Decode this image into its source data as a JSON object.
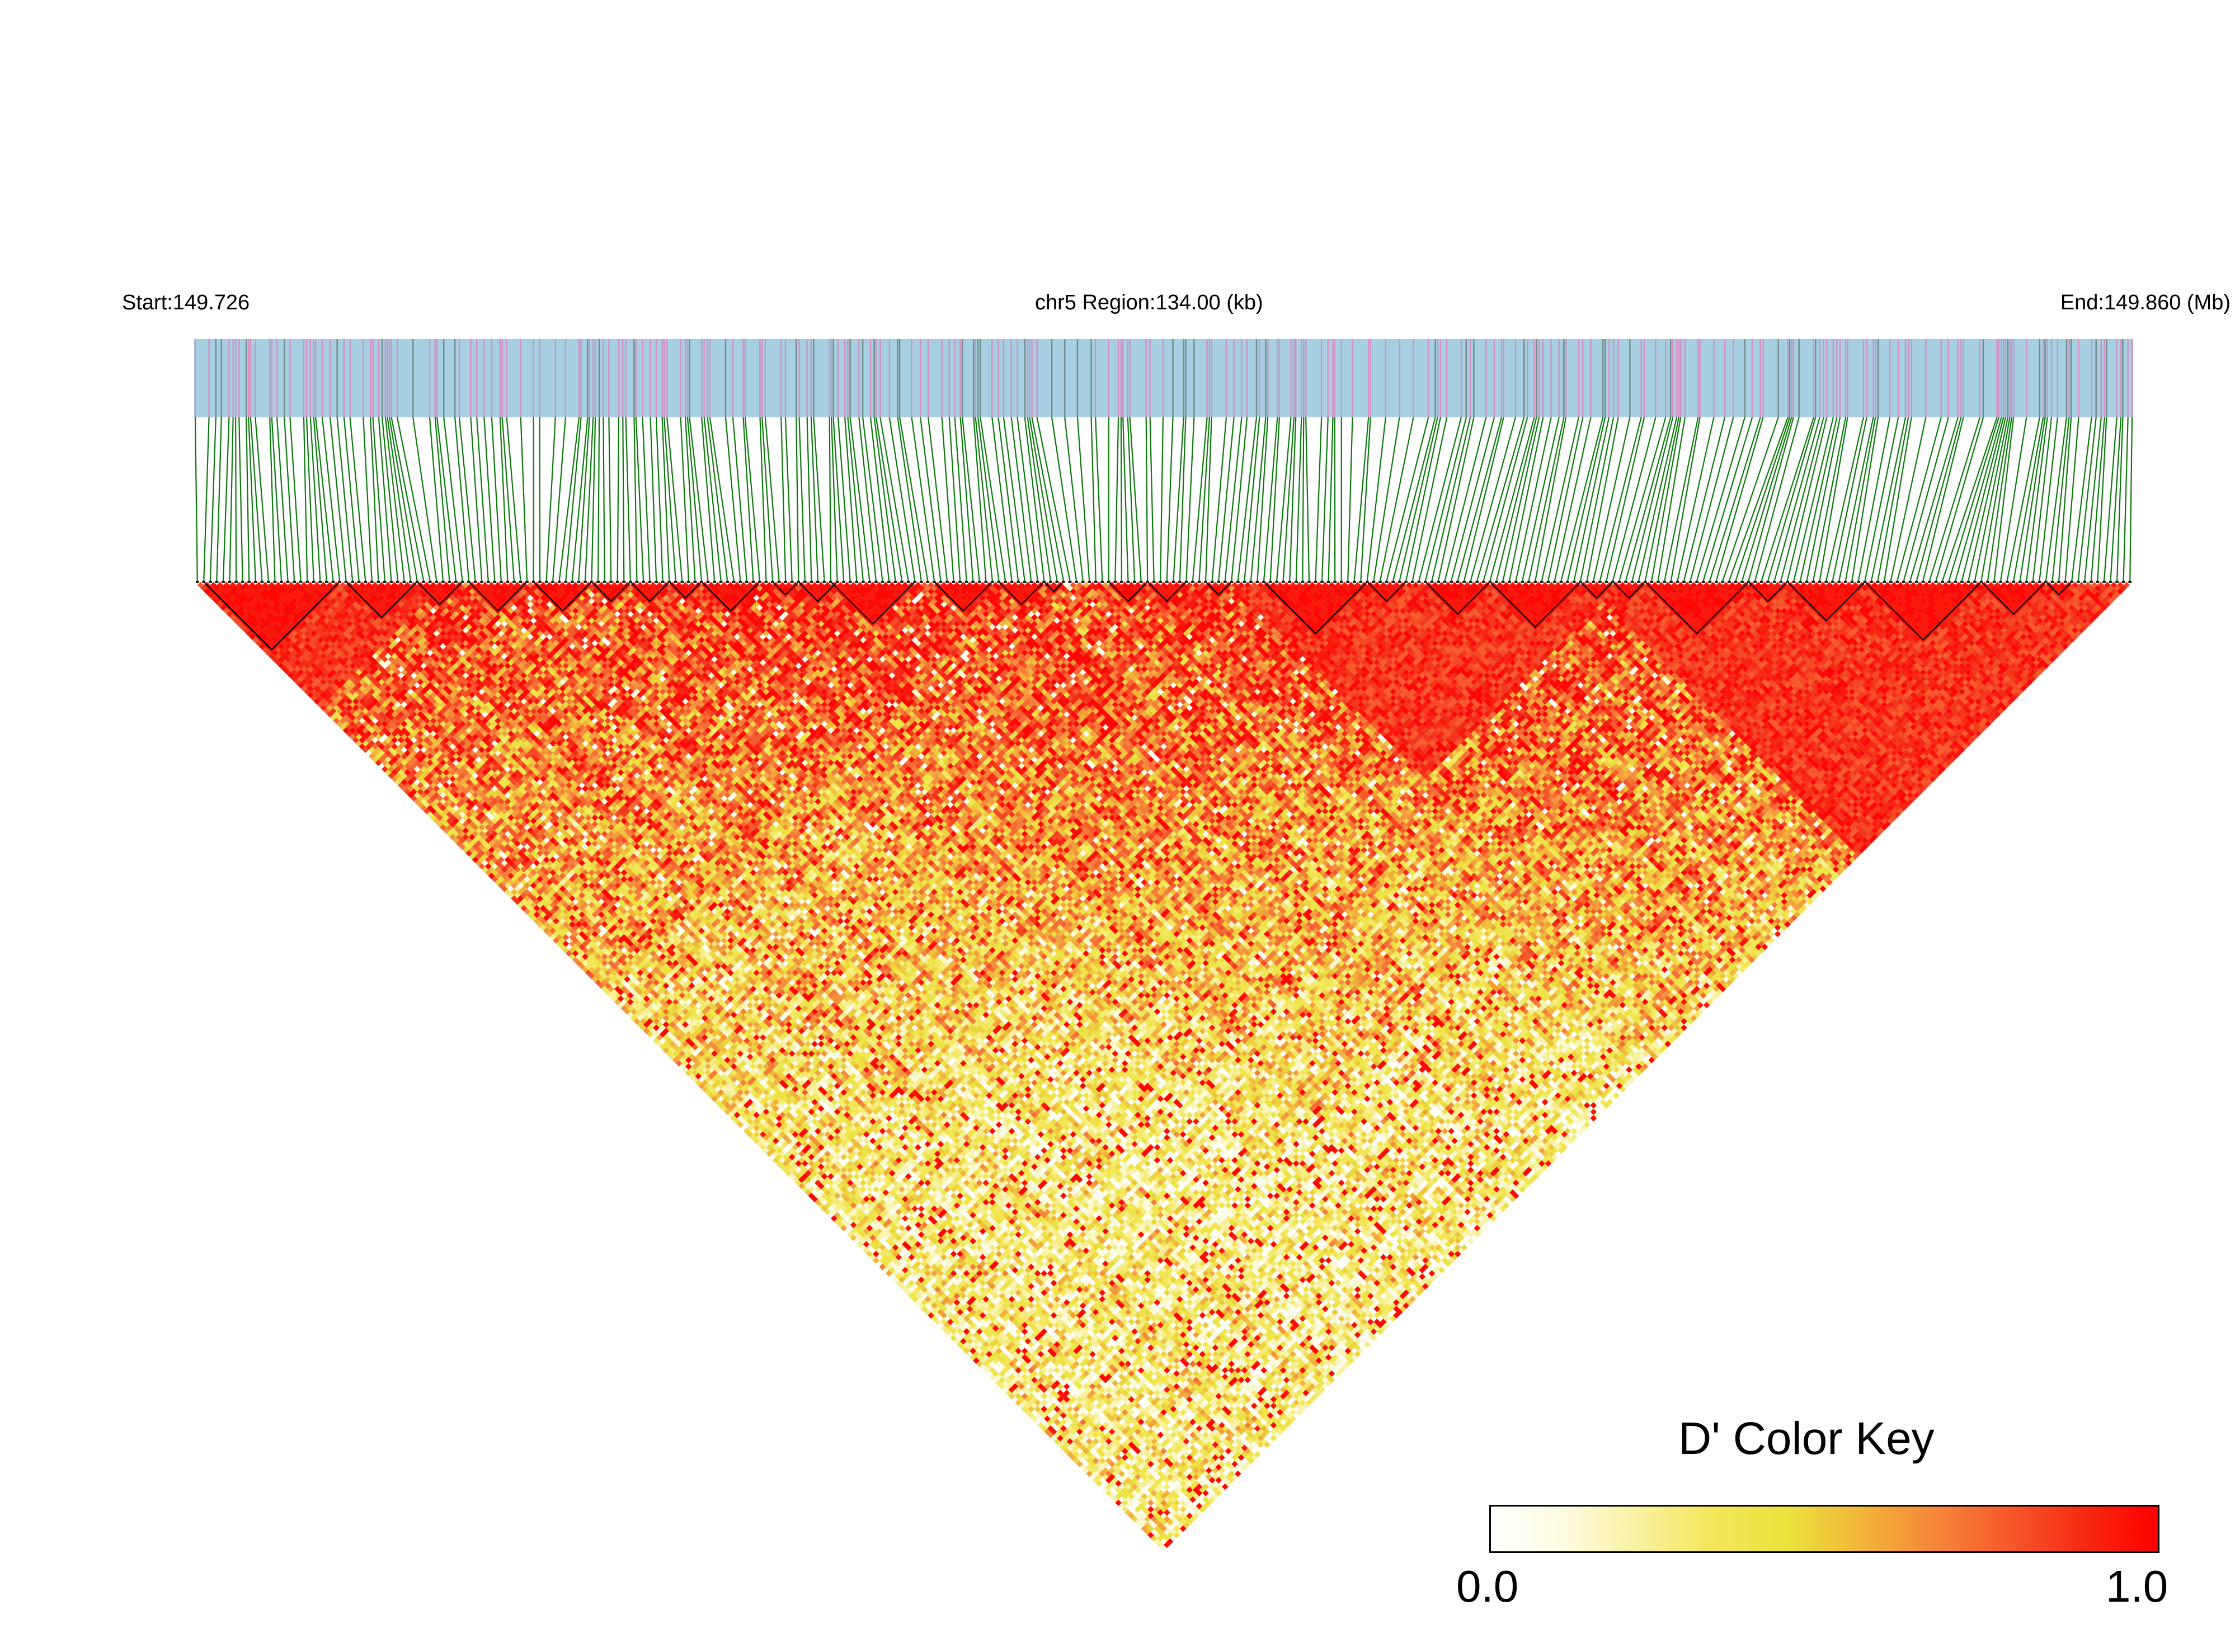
{
  "header": {
    "start_label": "Start:149.726",
    "region_label": "chr5 Region:134.00 (kb)",
    "end_label": "End:149.860 (Mb)"
  },
  "color_key": {
    "title": "D' Color Key",
    "min_label": "0.0",
    "max_label": "1.0",
    "colors": [
      "#ffffff",
      "#fdfbe0",
      "#f9f1a0",
      "#f3e75a",
      "#ebe23e",
      "#f2b53a",
      "#f5863a",
      "#f6582c",
      "#f52a14",
      "#ff0000"
    ]
  },
  "chart_data": {
    "type": "heatmap",
    "chromosome": "chr5",
    "start_mb": 149.726,
    "end_mb": 149.86,
    "region_kb": 134.0,
    "metric": "D'",
    "value_range": [
      0.0,
      1.0
    ],
    "track_colors": {
      "background": "#a6cfe2",
      "snp_a": "#d68fc2",
      "snp_b": "#6f8c86",
      "connector": "#0a7a0a"
    },
    "n_markers": 300,
    "ld_blocks": [
      {
        "start_index": 1,
        "end_index": 22
      },
      {
        "start_index": 23,
        "end_index": 34
      },
      {
        "start_index": 34,
        "end_index": 41
      },
      {
        "start_index": 42,
        "end_index": 51
      },
      {
        "start_index": 52,
        "end_index": 61
      },
      {
        "start_index": 61,
        "end_index": 67
      },
      {
        "start_index": 67,
        "end_index": 73
      },
      {
        "start_index": 73,
        "end_index": 78
      },
      {
        "start_index": 78,
        "end_index": 87
      },
      {
        "start_index": 89,
        "end_index": 93
      },
      {
        "start_index": 93,
        "end_index": 99
      },
      {
        "start_index": 98,
        "end_index": 111
      },
      {
        "start_index": 114,
        "end_index": 123
      },
      {
        "start_index": 124,
        "end_index": 131
      },
      {
        "start_index": 131,
        "end_index": 134
      },
      {
        "start_index": 141,
        "end_index": 147
      },
      {
        "start_index": 147,
        "end_index": 153
      },
      {
        "start_index": 156,
        "end_index": 160
      },
      {
        "start_index": 165,
        "end_index": 181
      },
      {
        "start_index": 181,
        "end_index": 187
      },
      {
        "start_index": 190,
        "end_index": 200
      },
      {
        "start_index": 200,
        "end_index": 214
      },
      {
        "start_index": 214,
        "end_index": 219
      },
      {
        "start_index": 219,
        "end_index": 224
      },
      {
        "start_index": 224,
        "end_index": 240
      },
      {
        "start_index": 240,
        "end_index": 246
      },
      {
        "start_index": 246,
        "end_index": 258
      },
      {
        "start_index": 258,
        "end_index": 276
      },
      {
        "start_index": 276,
        "end_index": 286
      },
      {
        "start_index": 286,
        "end_index": 290
      }
    ],
    "high_ld_regions": [
      {
        "start_index": 0,
        "end_index": 38
      },
      {
        "start_index": 160,
        "end_index": 220
      },
      {
        "start_index": 215,
        "end_index": 300
      }
    ]
  }
}
